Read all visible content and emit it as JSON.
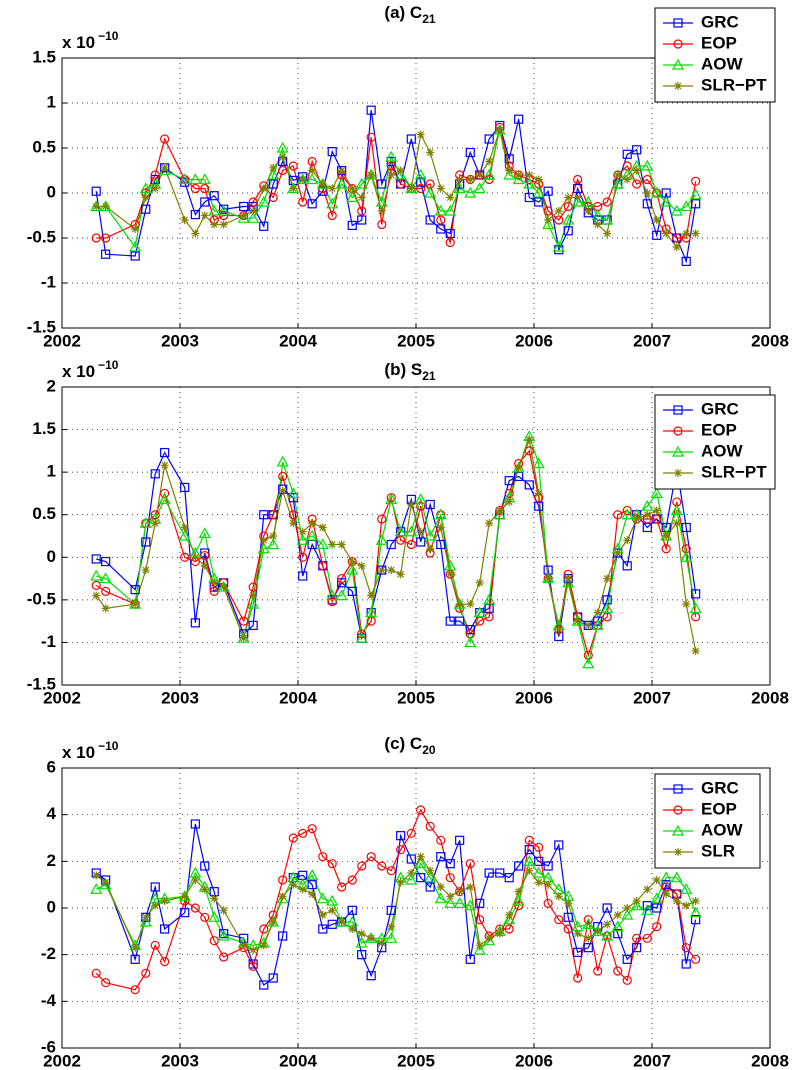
{
  "chart_data": [
    {
      "type": "line",
      "title": "(a) C",
      "title_sub": "21",
      "y_multiplier": "x 10",
      "y_multiplier_exp": "−10",
      "x": [
        2002.29,
        2002.37,
        2002.62,
        2002.71,
        2002.79,
        2002.87,
        2003.04,
        2003.13,
        2003.21,
        2003.29,
        2003.37,
        2003.54,
        2003.62,
        2003.71,
        2003.79,
        2003.87,
        2003.96,
        2004.04,
        2004.12,
        2004.21,
        2004.29,
        2004.37,
        2004.46,
        2004.54,
        2004.62,
        2004.71,
        2004.79,
        2004.87,
        2004.96,
        2005.04,
        2005.12,
        2005.21,
        2005.29,
        2005.37,
        2005.46,
        2005.54,
        2005.62,
        2005.71,
        2005.79,
        2005.87,
        2005.96,
        2006.04,
        2006.12,
        2006.21,
        2006.29,
        2006.37,
        2006.46,
        2006.54,
        2006.62,
        2006.71,
        2006.79,
        2006.87,
        2006.96,
        2007.04,
        2007.12,
        2007.21,
        2007.29,
        2007.37
      ],
      "xlim": [
        2002,
        2008
      ],
      "xticks": [
        2002,
        2003,
        2004,
        2005,
        2006,
        2007,
        2008
      ],
      "ylim": [
        -1.5,
        1.5
      ],
      "yticks": [
        -1.5,
        -1,
        -0.5,
        0,
        0.5,
        1,
        1.5
      ],
      "grid": true,
      "legend": "top-right",
      "series": [
        {
          "name": "GRC",
          "color": "#0000ff",
          "marker": "square",
          "values": [
            0.02,
            -0.68,
            -0.7,
            -0.18,
            0.15,
            0.28,
            0.12,
            -0.24,
            -0.1,
            -0.03,
            -0.18,
            -0.15,
            -0.15,
            -0.37,
            0.1,
            0.35,
            0.14,
            0.18,
            -0.12,
            0.02,
            0.46,
            0.25,
            -0.36,
            -0.3,
            0.92,
            0.1,
            0.35,
            0.1,
            0.6,
            0.12,
            -0.3,
            -0.4,
            -0.45,
            0.1,
            0.45,
            0.2,
            0.6,
            0.75,
            0.38,
            0.82,
            -0.05,
            -0.1,
            0.02,
            -0.63,
            -0.42,
            0.05,
            -0.22,
            -0.3,
            -0.3,
            0.1,
            0.43,
            0.48,
            -0.12,
            -0.47,
            0.0,
            -0.5,
            -0.76,
            -0.12
          ]
        },
        {
          "name": "EOP",
          "color": "#ff0000",
          "marker": "circle",
          "values": [
            -0.5,
            -0.5,
            -0.35,
            0,
            0.2,
            0.6,
            0.15,
            0.05,
            0.05,
            -0.3,
            -0.25,
            -0.25,
            -0.1,
            0.08,
            -0.05,
            0.25,
            0.3,
            -0.1,
            0.35,
            0.05,
            -0.25,
            0.2,
            0.05,
            -0.2,
            0.62,
            -0.35,
            0.3,
            0.1,
            0.05,
            0.05,
            0.1,
            -0.3,
            -0.55,
            0.2,
            0.15,
            0.2,
            0.15,
            0.73,
            0.3,
            0.2,
            0.15,
            0.1,
            -0.2,
            -0.3,
            -0.15,
            0.15,
            -0.15,
            -0.15,
            -0.1,
            0.2,
            0.3,
            0.1,
            0.15,
            0,
            -0.4,
            -0.5,
            -0.5,
            0.13
          ]
        },
        {
          "name": "AOW",
          "color": "#00e000",
          "marker": "triangle",
          "values": [
            -0.15,
            -0.15,
            -0.6,
            0.05,
            0.1,
            0.25,
            0.15,
            0.15,
            0.15,
            -0.2,
            -0.2,
            -0.28,
            -0.28,
            -0.1,
            0.2,
            0.5,
            0.05,
            0.15,
            0.15,
            0.1,
            -0.12,
            0.1,
            -0.05,
            0.1,
            0.2,
            -0.1,
            0.4,
            0.2,
            0.05,
            0.2,
            0,
            -0.2,
            -0.2,
            0.05,
            0,
            0.05,
            0.2,
            0.7,
            0.2,
            0.15,
            0.1,
            0,
            -0.35,
            -0.6,
            -0.3,
            -0.1,
            -0.1,
            -0.25,
            -0.3,
            0.1,
            0.2,
            0.3,
            0.3,
            0,
            -0.1,
            -0.2,
            -0.15,
            -0.02
          ]
        },
        {
          "name": "SLR−PT",
          "color": "#808000",
          "marker": "star",
          "values": [
            -0.15,
            -0.15,
            -0.4,
            -0.05,
            0.05,
            0.28,
            -0.3,
            -0.45,
            -0.25,
            -0.35,
            -0.35,
            -0.25,
            -0.2,
            0.05,
            0.28,
            0.4,
            0.05,
            0.15,
            0.25,
            0.1,
            0.05,
            0.25,
            0.05,
            -0.05,
            0.2,
            -0.2,
            0.2,
            0.25,
            0.05,
            0.65,
            0.45,
            0.05,
            -0.05,
            0.15,
            0.15,
            0.2,
            0.35,
            0.7,
            0.25,
            0.2,
            0.2,
            0.15,
            -0.3,
            -0.2,
            -0.05,
            -0.05,
            -0.2,
            -0.35,
            -0.45,
            0.2,
            0.15,
            0.25,
            0,
            -0.3,
            -0.45,
            -0.6,
            -0.45,
            -0.45
          ]
        }
      ]
    },
    {
      "type": "line",
      "title": "(b) S",
      "title_sub": "21",
      "y_multiplier": "x 10",
      "y_multiplier_exp": "−10",
      "x": [
        2002.29,
        2002.37,
        2002.62,
        2002.71,
        2002.79,
        2002.87,
        2003.04,
        2003.13,
        2003.21,
        2003.29,
        2003.37,
        2003.54,
        2003.62,
        2003.71,
        2003.79,
        2003.87,
        2003.96,
        2004.04,
        2004.12,
        2004.21,
        2004.29,
        2004.37,
        2004.46,
        2004.54,
        2004.62,
        2004.71,
        2004.79,
        2004.87,
        2004.96,
        2005.04,
        2005.12,
        2005.21,
        2005.29,
        2005.37,
        2005.46,
        2005.54,
        2005.62,
        2005.71,
        2005.79,
        2005.87,
        2005.96,
        2006.04,
        2006.12,
        2006.21,
        2006.29,
        2006.37,
        2006.46,
        2006.54,
        2006.62,
        2006.71,
        2006.79,
        2006.87,
        2006.96,
        2007.04,
        2007.12,
        2007.21,
        2007.29,
        2007.37
      ],
      "xlim": [
        2002,
        2008
      ],
      "xticks": [
        2002,
        2003,
        2004,
        2005,
        2006,
        2007,
        2008
      ],
      "ylim": [
        -1.5,
        2
      ],
      "yticks": [
        -1.5,
        -1,
        -0.5,
        0,
        0.5,
        1,
        1.5,
        2
      ],
      "grid": true,
      "legend": "top-right",
      "series": [
        {
          "name": "GRC",
          "color": "#0000ff",
          "marker": "square",
          "values": [
            -0.02,
            -0.05,
            -0.38,
            0.18,
            0.98,
            1.23,
            0.82,
            -0.77,
            0.05,
            -0.35,
            -0.3,
            -0.9,
            -0.8,
            0.5,
            0.5,
            0.8,
            0.7,
            -0.22,
            0.15,
            -0.1,
            -0.5,
            -0.3,
            -0.4,
            -0.95,
            -0.65,
            -0.15,
            0.15,
            0.3,
            0.68,
            0.18,
            0.62,
            0.15,
            -0.75,
            -0.75,
            -0.85,
            -0.65,
            -0.6,
            0.5,
            0.9,
            0.95,
            0.85,
            0.6,
            -0.15,
            -0.93,
            -0.25,
            -0.7,
            -0.8,
            -0.75,
            -0.5,
            0.05,
            -0.1,
            0.5,
            0.35,
            0.45,
            0.35,
            1.05,
            0.35,
            -0.43
          ]
        },
        {
          "name": "EOP",
          "color": "#ff0000",
          "marker": "circle",
          "values": [
            -0.33,
            -0.4,
            -0.55,
            0.4,
            0.5,
            0.75,
            0,
            -0.05,
            0.02,
            -0.4,
            -0.3,
            -0.75,
            -0.35,
            0.25,
            0.5,
            0.95,
            0.5,
            0,
            0.45,
            -0.1,
            -0.52,
            -0.25,
            -0.05,
            -0.9,
            -0.75,
            0.45,
            0.7,
            0.2,
            0.15,
            0.6,
            0.05,
            0.5,
            -0.2,
            -0.6,
            -0.9,
            -0.75,
            -0.7,
            0.55,
            0.75,
            1.1,
            1.25,
            0.7,
            -0.25,
            -0.85,
            -0.2,
            -0.7,
            -1.15,
            -0.8,
            -0.7,
            0.5,
            0.55,
            0.45,
            0.45,
            0.45,
            0.1,
            0.65,
            0.1,
            -0.7
          ]
        },
        {
          "name": "AOW",
          "color": "#00e000",
          "marker": "triangle",
          "values": [
            -0.22,
            -0.25,
            -0.55,
            0.4,
            0.45,
            0.68,
            0.25,
            0.05,
            0.28,
            -0.25,
            -0.35,
            -0.95,
            -0.55,
            0.1,
            0.15,
            1.12,
            0.75,
            0.2,
            0.25,
            0.15,
            -0.45,
            -0.45,
            -0.15,
            -0.95,
            -0.65,
            0.2,
            0.68,
            0.3,
            0.3,
            0.68,
            0.25,
            0.5,
            -0.1,
            -0.55,
            -1.0,
            -0.65,
            -0.5,
            0.5,
            0.7,
            1.05,
            1.42,
            1.1,
            -0.25,
            -0.8,
            -0.3,
            -0.75,
            -1.25,
            -0.8,
            -0.6,
            0.1,
            0.5,
            0.5,
            0.6,
            0.75,
            0.25,
            0.55,
            0.0,
            -0.6
          ]
        },
        {
          "name": "SLR−PT",
          "color": "#808000",
          "marker": "star",
          "values": [
            -0.45,
            -0.6,
            -0.55,
            -0.15,
            0.4,
            1.08,
            0.35,
            0,
            -0.1,
            -0.3,
            -0.35,
            -0.95,
            -0.45,
            0.2,
            0.25,
            0.78,
            0.4,
            0.3,
            0.4,
            0.35,
            0.15,
            0.15,
            -0.05,
            -0.1,
            -0.45,
            -0.15,
            -0.15,
            -0.2,
            0.62,
            0.3,
            0.1,
            0.35,
            -0.2,
            -0.55,
            -0.55,
            -0.3,
            0.4,
            0.55,
            0.65,
            1.05,
            1.38,
            0.75,
            -0.25,
            -0.85,
            -0.25,
            -0.75,
            -0.8,
            -0.65,
            -0.25,
            0.05,
            0.2,
            0.45,
            0.5,
            0.55,
            0.25,
            0.4,
            -0.55,
            -1.1
          ]
        }
      ]
    },
    {
      "type": "line",
      "title": "(c) C",
      "title_sub": "20",
      "y_multiplier": "x 10",
      "y_multiplier_exp": "−10",
      "x": [
        2002.29,
        2002.37,
        2002.62,
        2002.71,
        2002.79,
        2002.87,
        2003.04,
        2003.13,
        2003.21,
        2003.29,
        2003.37,
        2003.54,
        2003.62,
        2003.71,
        2003.79,
        2003.87,
        2003.96,
        2004.04,
        2004.12,
        2004.21,
        2004.29,
        2004.37,
        2004.46,
        2004.54,
        2004.62,
        2004.71,
        2004.79,
        2004.87,
        2004.96,
        2005.04,
        2005.12,
        2005.21,
        2005.29,
        2005.37,
        2005.46,
        2005.54,
        2005.62,
        2005.71,
        2005.79,
        2005.87,
        2005.96,
        2006.04,
        2006.12,
        2006.21,
        2006.29,
        2006.37,
        2006.46,
        2006.54,
        2006.62,
        2006.71,
        2006.79,
        2006.87,
        2006.96,
        2007.04,
        2007.12,
        2007.21,
        2007.29,
        2007.37
      ],
      "xlim": [
        2002,
        2008
      ],
      "xticks": [
        2002,
        2003,
        2004,
        2005,
        2006,
        2007,
        2008
      ],
      "ylim": [
        -6,
        6
      ],
      "yticks": [
        -6,
        -4,
        -2,
        0,
        2,
        4,
        6
      ],
      "grid": true,
      "legend": "top-right",
      "series": [
        {
          "name": "GRC",
          "color": "#0000ff",
          "marker": "square",
          "values": [
            1.5,
            1.2,
            -2.2,
            -0.4,
            0.9,
            -0.9,
            -0.2,
            3.6,
            1.8,
            0.7,
            -1.1,
            -1.3,
            -2.4,
            -3.3,
            -3.0,
            -1.2,
            1.3,
            1.4,
            1.0,
            -0.9,
            -0.7,
            -0.6,
            -0.1,
            -2.0,
            -2.9,
            -1.7,
            -0.1,
            3.1,
            2.1,
            1.3,
            0.9,
            2.2,
            1.9,
            2.9,
            -2.2,
            0.2,
            1.5,
            1.5,
            1.3,
            1.8,
            2.5,
            2.0,
            1.8,
            2.7,
            -0.4,
            -1.9,
            -1.7,
            -0.8,
            0.0,
            -1.1,
            -2.2,
            -1.7,
            0.1,
            0.0,
            1.0,
            0.6,
            -2.4,
            -0.5
          ]
        },
        {
          "name": "EOP",
          "color": "#ff0000",
          "marker": "circle",
          "values": [
            -2.8,
            -3.2,
            -3.5,
            -2.8,
            -1.6,
            -2.3,
            0.3,
            0.0,
            -0.4,
            -1.4,
            -2.1,
            -1.7,
            -2.5,
            -0.9,
            -0.3,
            1.2,
            3.0,
            3.2,
            3.4,
            2.2,
            1.9,
            0.9,
            1.2,
            1.8,
            2.2,
            1.8,
            1.6,
            2.5,
            3.2,
            4.2,
            3.5,
            2.9,
            1.3,
            0.7,
            1.9,
            -0.5,
            -1.2,
            -0.9,
            -0.9,
            0.1,
            2.9,
            2.6,
            0.2,
            -0.5,
            -0.9,
            -3.0,
            -0.5,
            -2.7,
            -1.2,
            -2.7,
            -3.1,
            -1.3,
            -1.3,
            -0.8,
            0.9,
            0.6,
            -1.7,
            -2.2
          ]
        },
        {
          "name": "AOW",
          "color": "#00e000",
          "marker": "triangle",
          "values": [
            0.8,
            1.0,
            -1.6,
            -0.6,
            0.4,
            0.4,
            0.5,
            1.5,
            0.9,
            -0.4,
            -1.2,
            -1.5,
            -1.6,
            -1.5,
            -0.6,
            0.4,
            1.3,
            1.0,
            1.4,
            0.4,
            0.3,
            -0.6,
            -0.6,
            -1.5,
            -1.3,
            -1.3,
            -1.3,
            1.3,
            1.2,
            1.9,
            1.3,
            0.4,
            0.2,
            0.2,
            0.1,
            -1.8,
            -1.4,
            -1.0,
            -0.5,
            0.3,
            2.0,
            1.5,
            1.3,
            0.8,
            0.5,
            -0.8,
            -0.7,
            -1.0,
            -1.2,
            -0.8,
            -0.3,
            0.1,
            -0.1,
            0.4,
            1.3,
            1.3,
            0.8,
            -0.2
          ]
        },
        {
          "name": "SLR",
          "color": "#808000",
          "marker": "star",
          "values": [
            1.4,
            1.1,
            -1.7,
            -0.4,
            0.1,
            0.3,
            0.5,
            1.2,
            0.8,
            0.4,
            -0.1,
            -1.6,
            -1.8,
            -1.6,
            -0.6,
            0.5,
            1.0,
            0.8,
            0.6,
            -0.3,
            -0.1,
            -0.6,
            -0.9,
            -1.1,
            -1.3,
            -1.5,
            -0.8,
            1.1,
            1.5,
            2.2,
            1.6,
            0.9,
            0.5,
            0.7,
            0.9,
            -1.6,
            -1.3,
            -1.1,
            -0.3,
            0.7,
            1.6,
            1.1,
            1.0,
            0.5,
            0.2,
            -1.1,
            -1.3,
            -1.0,
            -0.7,
            -0.3,
            0.0,
            0.3,
            0.8,
            1.2,
            0.6,
            0.3,
            0.1,
            0.3
          ]
        }
      ]
    }
  ]
}
